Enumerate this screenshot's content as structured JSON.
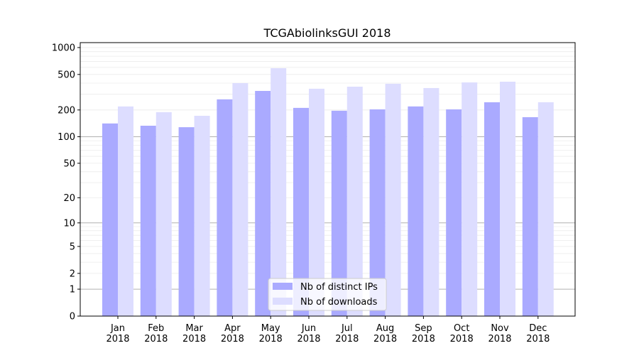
{
  "chart_data": {
    "type": "bar",
    "title": "TCGAbiolinksGUI 2018",
    "xlabel": "",
    "ylabel": "",
    "y_scale": "symlog",
    "ylim": [
      0,
      1100
    ],
    "y_ticks": [
      0,
      1,
      2,
      5,
      10,
      20,
      50,
      100,
      200,
      500,
      1000
    ],
    "grid": true,
    "legend_position": "bottom-center",
    "categories": [
      "Jan\n2018",
      "Feb\n2018",
      "Mar\n2018",
      "Apr\n2018",
      "May\n2018",
      "Jun\n2018",
      "Jul\n2018",
      "Aug\n2018",
      "Sep\n2018",
      "Oct\n2018",
      "Nov\n2018",
      "Dec\n2018"
    ],
    "series": [
      {
        "name": "Nb of distinct IPs",
        "color": "#aaaaff",
        "values": [
          141,
          133,
          128,
          263,
          327,
          211,
          196,
          203,
          219,
          203,
          244,
          166
        ]
      },
      {
        "name": "Nb of downloads",
        "color": "#ddddff",
        "values": [
          219,
          189,
          172,
          400,
          588,
          346,
          365,
          393,
          352,
          407,
          415,
          244
        ]
      }
    ]
  }
}
